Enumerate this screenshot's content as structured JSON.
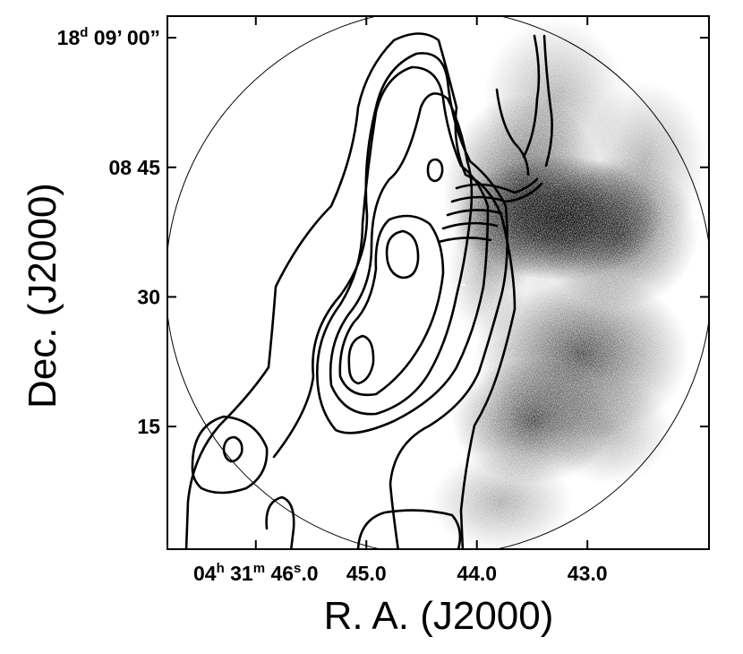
{
  "chart_data": {
    "type": "contour",
    "xlabel": "R. A. (J2000)",
    "ylabel": "Dec. (J2000)",
    "x_ticks": [
      {
        "value": 46.0,
        "label_parts": [
          [
            "04",
            ""
          ],
          [
            "h",
            "sup"
          ],
          [
            " 31",
            ""
          ],
          [
            "m",
            "sup"
          ],
          [
            " 46",
            ""
          ],
          [
            "s",
            "sup"
          ],
          [
            ".0",
            ""
          ]
        ]
      },
      {
        "value": 45.0,
        "label": "45.0"
      },
      {
        "value": 44.0,
        "label": "44.0"
      },
      {
        "value": 43.0,
        "label": "43.0"
      }
    ],
    "y_ticks": [
      {
        "value": 60,
        "label_parts": [
          [
            "18",
            ""
          ],
          [
            "d",
            "sup"
          ],
          [
            " 09’ 00”",
            ""
          ]
        ]
      },
      {
        "value": 45,
        "label": "08 45"
      },
      {
        "value": 30,
        "label": "30"
      },
      {
        "value": 15,
        "label": "15"
      }
    ],
    "xlim": [
      46.8,
      41.9
    ],
    "ylim": [
      0.8,
      62.5
    ],
    "x_units": "RA seconds past 04h31m",
    "y_units": "Dec arcseconds past 18d08m",
    "background": "greyscale stippled emission, peak near RA 43.4s Dec 08'40\"",
    "contour_peaks": [
      {
        "ra": 44.7,
        "dec": 35.5
      },
      {
        "ra": 44.9,
        "dec": 23.5
      },
      {
        "ra": 46.1,
        "dec": 12.0
      },
      {
        "ra": 44.5,
        "dec": 45.5
      }
    ],
    "contour_count": 7
  }
}
